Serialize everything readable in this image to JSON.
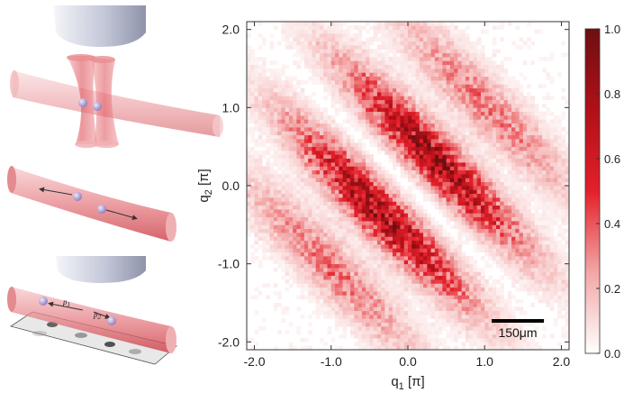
{
  "chart_data": {
    "type": "heatmap",
    "title": "",
    "xlabel": {
      "base": "q",
      "sub": "1",
      "unit": " [π]"
    },
    "ylabel": {
      "base": "q",
      "sub": "2",
      "unit": " [π]"
    },
    "xlim": [
      -2.1,
      2.1
    ],
    "ylim": [
      -2.1,
      2.1
    ],
    "x_ticks": [
      -2.0,
      -1.0,
      0.0,
      1.0,
      2.0
    ],
    "y_ticks": [
      -2.0,
      -1.0,
      0.0,
      1.0,
      2.0
    ],
    "x_tick_labels": [
      "-2.0",
      "-1.0",
      "0.0",
      "1.0",
      "2.0"
    ],
    "y_tick_labels": [
      "-2.0",
      "-1.0",
      "0.0",
      "1.0",
      "2.0"
    ],
    "colorbar": {
      "min": 0.0,
      "max": 1.0,
      "ticks": [
        0.0,
        0.2,
        0.4,
        0.6,
        0.8,
        1.0
      ],
      "tick_labels": [
        "0.0",
        "0.2",
        "0.4",
        "0.6",
        "0.8",
        "1.0"
      ],
      "colormap": [
        "#ffffff",
        "#f3a6a6",
        "#e4202a",
        "#b01018",
        "#6e0f12"
      ]
    },
    "bands": [
      {
        "offset": 0.0,
        "intensity": 0.0,
        "note": "nodal line along q1 = -q2"
      },
      {
        "offset": 0.5,
        "intensity": 0.75
      },
      {
        "offset": -0.5,
        "intensity": 0.75
      },
      {
        "offset": 1.45,
        "intensity": 0.32
      },
      {
        "offset": -1.45,
        "intensity": 0.32
      }
    ],
    "grid": false,
    "scalebar": {
      "label": "150μm"
    }
  },
  "colors": {
    "beam": "#e8676d",
    "beam_dark": "#c9343c",
    "atom": "#b7a3d8",
    "objective": "#aeb3c6"
  },
  "icons": [
    "objective-lens-icon",
    "crossed-tweezer-icon",
    "single-beam-icon",
    "atom-icon",
    "camera-image-icon"
  ],
  "illustration": {
    "p1_label": "p",
    "p1_sub": "1",
    "p2_label": "p",
    "p2_sub": "2"
  }
}
